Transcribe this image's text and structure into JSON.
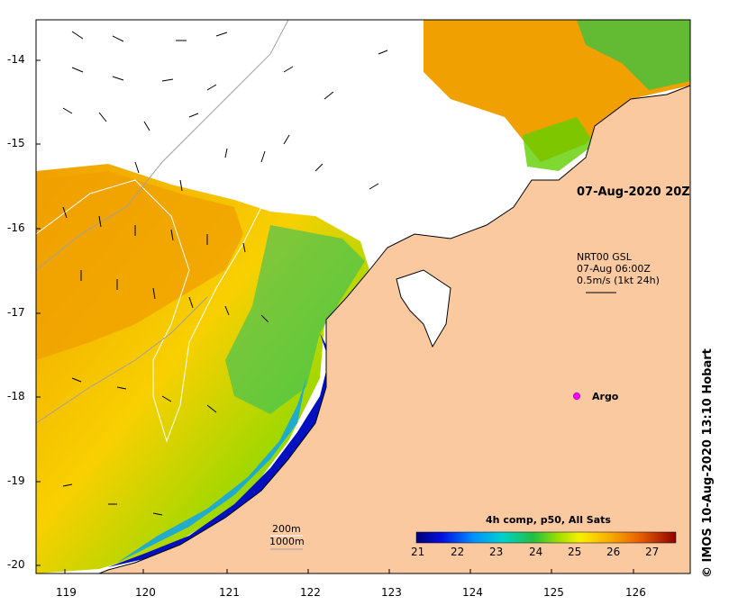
{
  "map": {
    "x_ticks": [
      "119",
      "120",
      "121",
      "122",
      "123",
      "124",
      "125",
      "126"
    ],
    "y_ticks": [
      "-14",
      "-15",
      "-16",
      "-17",
      "-18",
      "-19",
      "-20"
    ],
    "date_label": "07-Aug-2020 20Z",
    "current_legend": {
      "line1": "NRT00 GSL",
      "line2": "07-Aug 06:00Z",
      "line3": "0.5m/s (1kt 24h)"
    },
    "argo_label": "Argo",
    "credit": "© IMOS 10-Aug-2020 13:10 Hobart",
    "depth_contours": [
      "200m",
      "1000m"
    ],
    "colorbar": {
      "title": "4h comp, p50, All Sats",
      "ticks": [
        "21",
        "22",
        "23",
        "24",
        "25",
        "26",
        "27"
      ],
      "colors": [
        "#00007a",
        "#0000d0",
        "#0060ff",
        "#00b0ff",
        "#00d8c0",
        "#00c060",
        "#60d000",
        "#c0e000",
        "#f8f000",
        "#f8c000",
        "#f09000",
        "#e06000",
        "#c82000",
        "#800000"
      ]
    },
    "colors": {
      "land": "#fbc9a0",
      "nodata": "#ffffff"
    }
  }
}
